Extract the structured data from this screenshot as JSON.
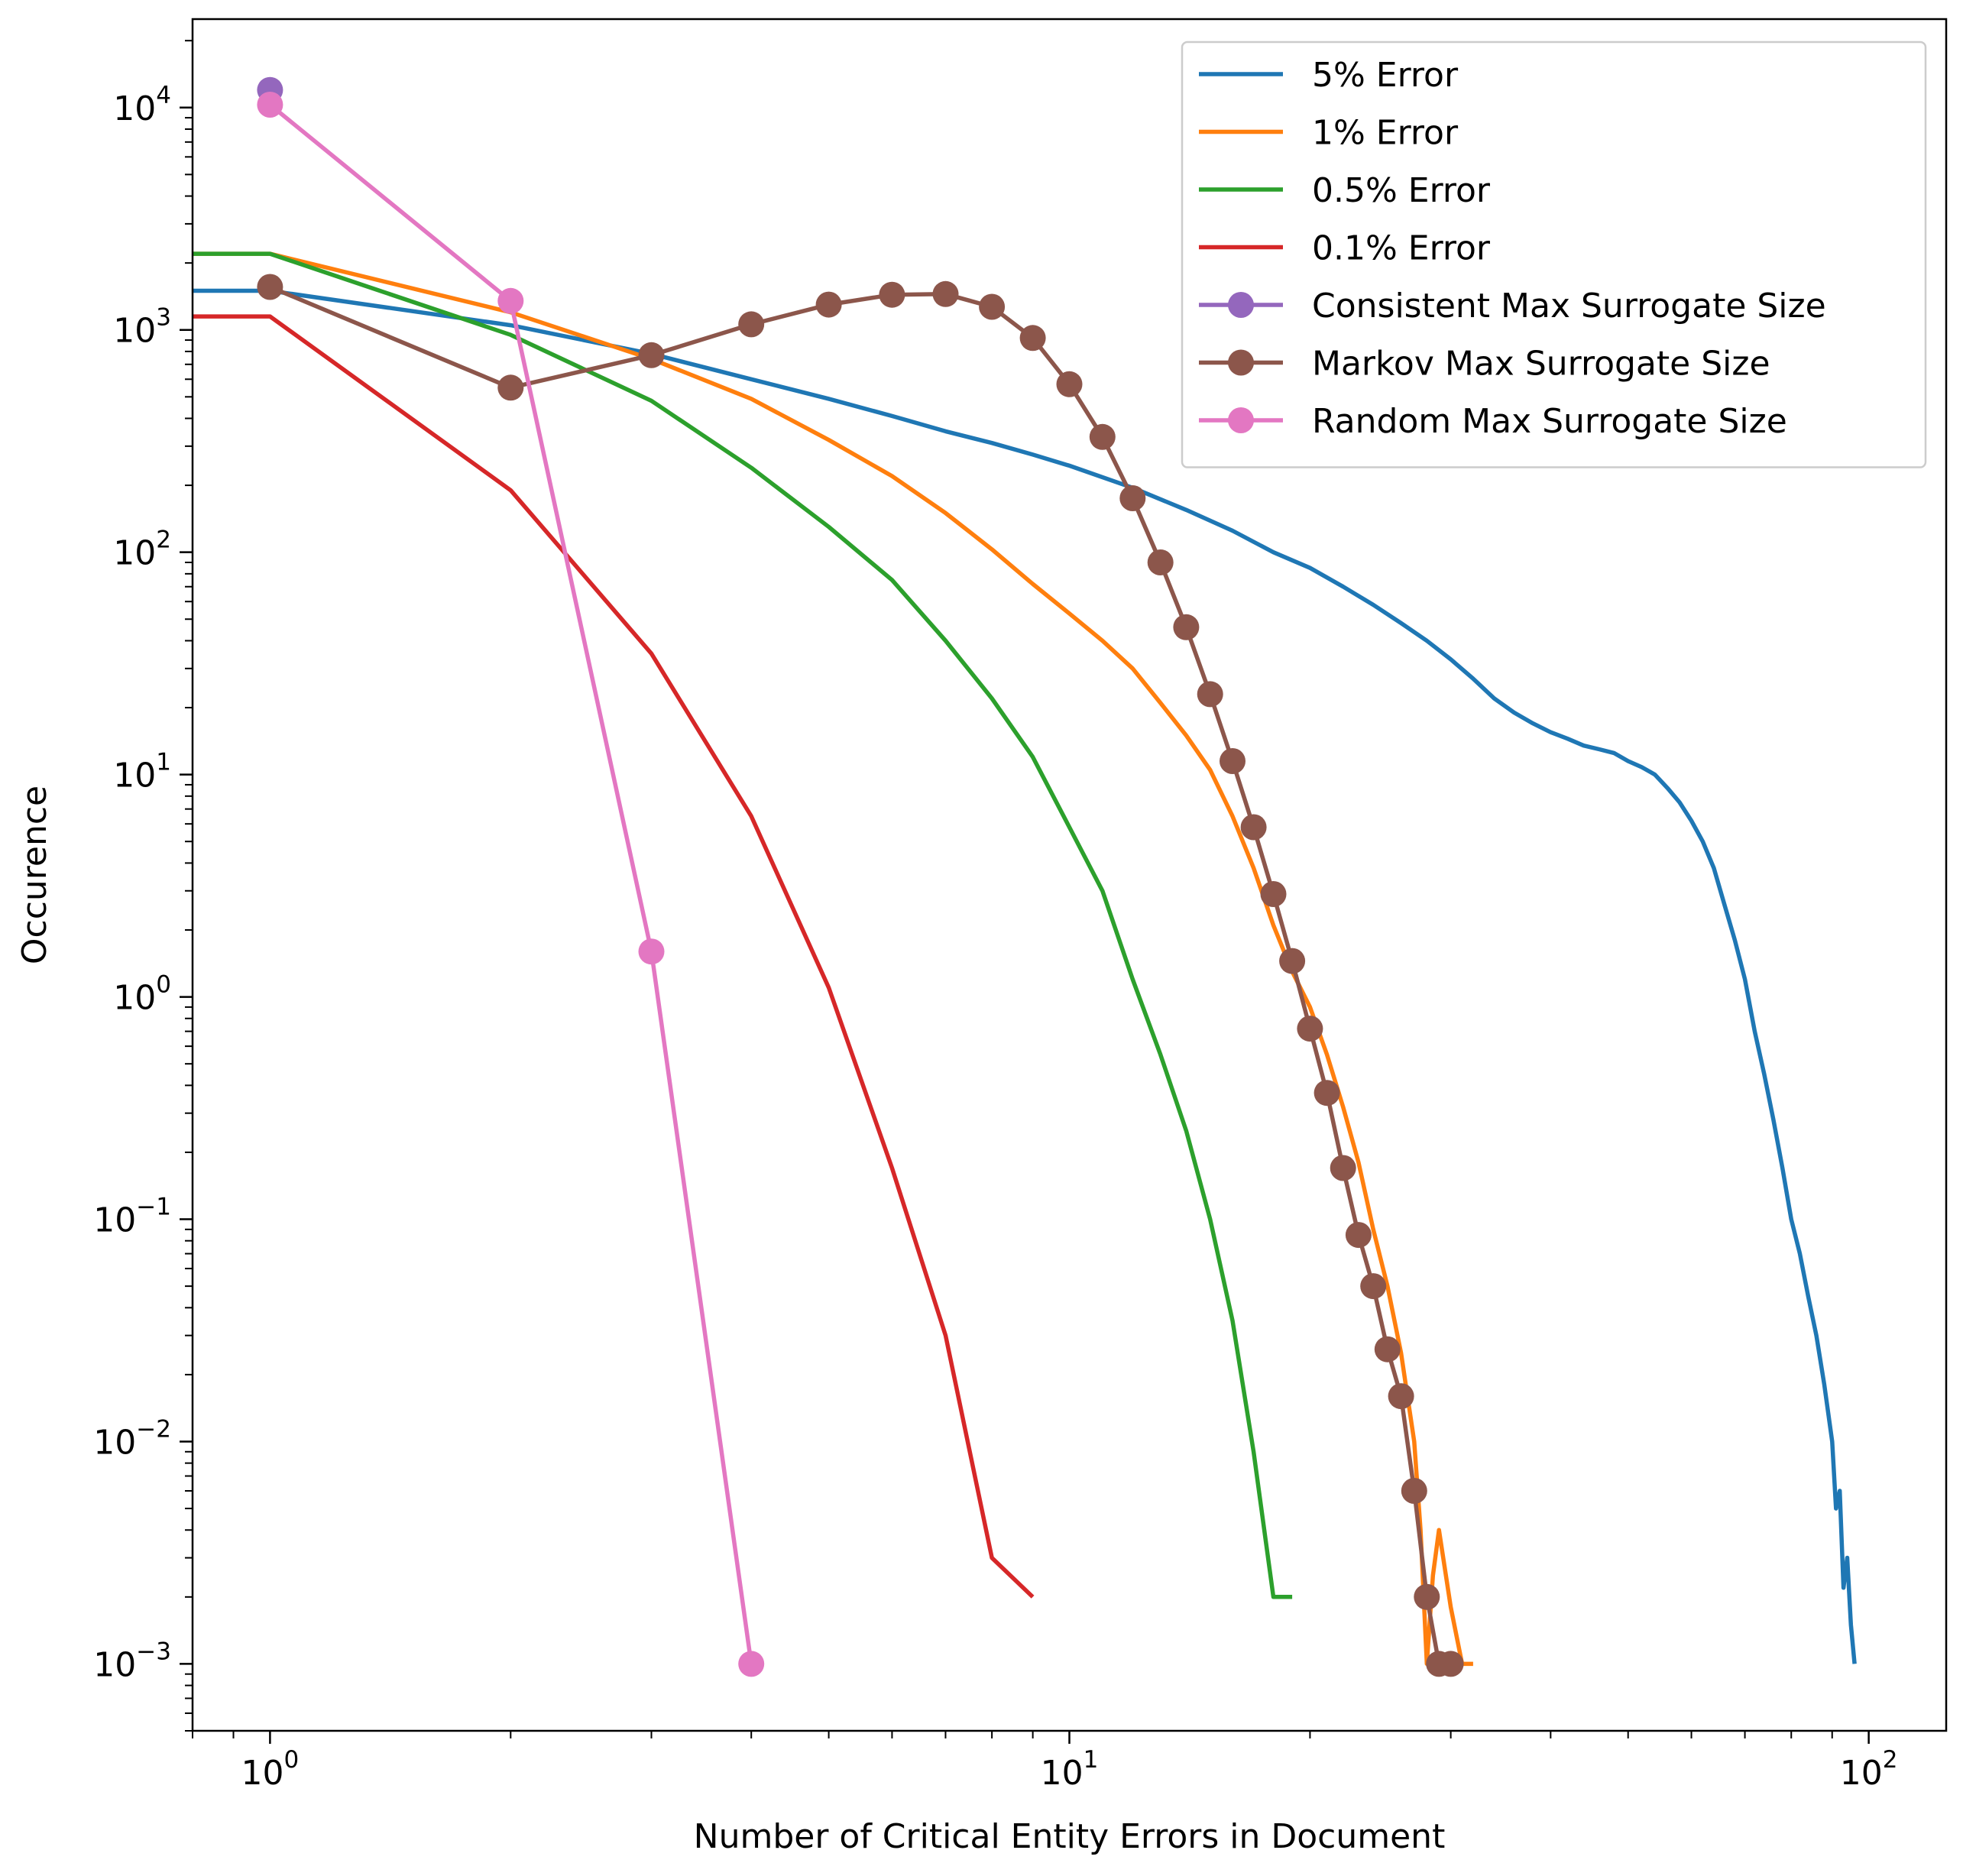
{
  "chart_data": {
    "type": "line",
    "title": "",
    "xlabel": "Number of Critical Entity Errors in Document",
    "ylabel": "Occurence",
    "xscale": "log",
    "yscale": "log",
    "xlim": [
      0.8,
      125
    ],
    "ylim": [
      0.0005,
      25000
    ],
    "grid": false,
    "legend_position": "top-right",
    "x_ticks": [
      {
        "value": 1,
        "base": "10",
        "exp": "0"
      },
      {
        "value": 10,
        "base": "10",
        "exp": "1"
      },
      {
        "value": 100,
        "base": "10",
        "exp": "2"
      }
    ],
    "y_ticks": [
      {
        "value": 0.001,
        "base": "10",
        "exp": "−3"
      },
      {
        "value": 0.01,
        "base": "10",
        "exp": "−2"
      },
      {
        "value": 0.1,
        "base": "10",
        "exp": "−1"
      },
      {
        "value": 1,
        "base": "10",
        "exp": "0"
      },
      {
        "value": 10,
        "base": "10",
        "exp": "1"
      },
      {
        "value": 100,
        "base": "10",
        "exp": "2"
      },
      {
        "value": 1000,
        "base": "10",
        "exp": "3"
      },
      {
        "value": 10000,
        "base": "10",
        "exp": "4"
      }
    ],
    "series": [
      {
        "name": "5% Error",
        "color": "#1f77b4",
        "marker": false,
        "points": [
          [
            0.8,
            1500
          ],
          [
            1,
            1500
          ],
          [
            2,
            1050
          ],
          [
            3,
            780
          ],
          [
            4,
            600
          ],
          [
            5,
            490
          ],
          [
            6,
            410
          ],
          [
            7,
            350
          ],
          [
            8,
            310
          ],
          [
            9,
            275
          ],
          [
            10,
            245
          ],
          [
            12,
            195
          ],
          [
            14,
            155
          ],
          [
            16,
            125
          ],
          [
            18,
            100
          ],
          [
            20,
            85
          ],
          [
            22,
            70
          ],
          [
            24,
            58
          ],
          [
            26,
            48
          ],
          [
            28,
            40
          ],
          [
            30,
            33
          ],
          [
            32,
            27
          ],
          [
            34,
            22
          ],
          [
            36,
            19
          ],
          [
            38,
            17
          ],
          [
            40,
            15.5
          ],
          [
            42,
            14.5
          ],
          [
            44,
            13.5
          ],
          [
            46,
            13
          ],
          [
            48,
            12.5
          ],
          [
            50,
            11.5
          ],
          [
            52,
            10.8
          ],
          [
            54,
            10
          ],
          [
            56,
            8.7
          ],
          [
            58,
            7.5
          ],
          [
            60,
            6.2
          ],
          [
            62,
            5
          ],
          [
            64,
            3.8
          ],
          [
            66,
            2.6
          ],
          [
            68,
            1.8
          ],
          [
            70,
            1.2
          ],
          [
            72,
            0.7
          ],
          [
            74,
            0.45
          ],
          [
            76,
            0.28
          ],
          [
            78,
            0.17
          ],
          [
            80,
            0.1
          ],
          [
            82,
            0.07
          ],
          [
            84,
            0.045
          ],
          [
            86,
            0.03
          ],
          [
            88,
            0.018
          ],
          [
            90,
            0.01
          ],
          [
            91,
            0.005
          ],
          [
            92,
            0.006
          ],
          [
            93,
            0.0022
          ],
          [
            94,
            0.003
          ],
          [
            95,
            0.0015
          ],
          [
            96,
            0.001
          ]
        ]
      },
      {
        "name": "1% Error",
        "color": "#ff7f0e",
        "marker": false,
        "points": [
          [
            0.8,
            2200
          ],
          [
            1,
            2200
          ],
          [
            2,
            1200
          ],
          [
            3,
            740
          ],
          [
            4,
            490
          ],
          [
            5,
            320
          ],
          [
            6,
            220
          ],
          [
            7,
            150
          ],
          [
            8,
            103
          ],
          [
            9,
            72
          ],
          [
            10,
            53
          ],
          [
            11,
            40
          ],
          [
            12,
            30
          ],
          [
            13,
            21
          ],
          [
            14,
            15
          ],
          [
            15,
            10.5
          ],
          [
            16,
            6.5
          ],
          [
            17,
            3.8
          ],
          [
            18,
            2.1
          ],
          [
            19,
            1.3
          ],
          [
            20,
            0.9
          ],
          [
            21,
            0.55
          ],
          [
            22,
            0.32
          ],
          [
            23,
            0.18
          ],
          [
            24,
            0.09
          ],
          [
            25,
            0.05
          ],
          [
            26,
            0.025
          ],
          [
            27,
            0.01
          ],
          [
            27.5,
            0.004
          ],
          [
            28,
            0.001
          ],
          [
            28.5,
            0.0025
          ],
          [
            29,
            0.004
          ],
          [
            30,
            0.0018
          ],
          [
            31,
            0.001
          ],
          [
            32,
            0.001
          ]
        ]
      },
      {
        "name": "0.5% Error",
        "color": "#2ca02c",
        "marker": false,
        "points": [
          [
            0.8,
            2200
          ],
          [
            1,
            2200
          ],
          [
            2,
            950
          ],
          [
            3,
            480
          ],
          [
            4,
            240
          ],
          [
            5,
            130
          ],
          [
            6,
            75
          ],
          [
            7,
            40
          ],
          [
            8,
            22
          ],
          [
            9,
            12
          ],
          [
            10,
            5.8
          ],
          [
            11,
            3
          ],
          [
            12,
            1.2
          ],
          [
            13,
            0.55
          ],
          [
            14,
            0.25
          ],
          [
            15,
            0.1
          ],
          [
            16,
            0.035
          ],
          [
            17,
            0.009
          ],
          [
            18,
            0.002
          ],
          [
            19,
            0.002
          ]
        ]
      },
      {
        "name": "0.1% Error",
        "color": "#d62728",
        "marker": false,
        "points": [
          [
            0.8,
            1150
          ],
          [
            1,
            1150
          ],
          [
            2,
            190
          ],
          [
            3,
            35
          ],
          [
            4,
            6.5
          ],
          [
            5,
            1.1
          ],
          [
            6,
            0.17
          ],
          [
            7,
            0.03
          ],
          [
            8,
            0.003
          ],
          [
            9,
            0.002
          ]
        ]
      },
      {
        "name": "Consistent Max Surrogate Size",
        "color": "#9467bd",
        "marker": true,
        "points": [
          [
            1,
            12000
          ]
        ]
      },
      {
        "name": "Markov Max Surrogate Size",
        "color": "#8c564b",
        "marker": true,
        "points": [
          [
            1,
            1560
          ],
          [
            2,
            550
          ],
          [
            3,
            770
          ],
          [
            4,
            1060
          ],
          [
            5,
            1300
          ],
          [
            6,
            1440
          ],
          [
            7,
            1450
          ],
          [
            8,
            1270
          ],
          [
            9,
            920
          ],
          [
            10,
            570
          ],
          [
            11,
            330
          ],
          [
            12,
            175
          ],
          [
            13,
            90
          ],
          [
            14,
            46
          ],
          [
            15,
            23
          ],
          [
            16,
            11.5
          ],
          [
            17,
            5.8
          ],
          [
            18,
            2.9
          ],
          [
            19,
            1.45
          ],
          [
            20,
            0.72
          ],
          [
            21,
            0.37
          ],
          [
            22,
            0.17
          ],
          [
            23,
            0.085
          ],
          [
            24,
            0.05
          ],
          [
            25,
            0.026
          ],
          [
            26,
            0.016
          ],
          [
            27,
            0.006
          ],
          [
            28,
            0.002
          ],
          [
            29,
            0.001
          ],
          [
            30,
            0.001
          ]
        ]
      },
      {
        "name": "Random Max Surrogate Size",
        "color": "#e377c2",
        "marker": true,
        "points": [
          [
            1,
            10300
          ],
          [
            2,
            1350
          ],
          [
            3,
            1.6
          ],
          [
            4,
            0.001
          ]
        ]
      }
    ]
  }
}
